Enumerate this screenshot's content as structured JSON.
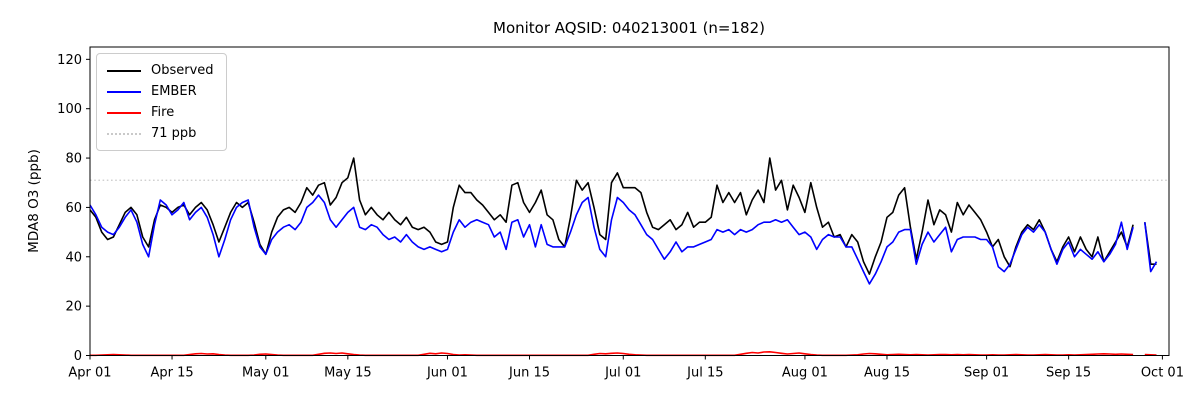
{
  "chart_data": {
    "type": "line",
    "title": "Monitor AQSID: 040213001 (n=182)",
    "ylabel": "MDA8 O3 (ppb)",
    "xlabel": "",
    "ylim": [
      0,
      125
    ],
    "yticks": [
      0,
      20,
      40,
      60,
      80,
      100,
      120
    ],
    "grid": false,
    "legend_position": "upper left",
    "x_unit": "days since Apr 01",
    "xticks": [
      {
        "label": "Apr 01",
        "day": 0
      },
      {
        "label": "Apr 15",
        "day": 14
      },
      {
        "label": "May 01",
        "day": 30
      },
      {
        "label": "May 15",
        "day": 44
      },
      {
        "label": "Jun 01",
        "day": 61
      },
      {
        "label": "Jun 15",
        "day": 75
      },
      {
        "label": "Jul 01",
        "day": 91
      },
      {
        "label": "Jul 15",
        "day": 105
      },
      {
        "label": "Aug 01",
        "day": 122
      },
      {
        "label": "Aug 15",
        "day": 136
      },
      {
        "label": "Sep 01",
        "day": 153
      },
      {
        "label": "Sep 15",
        "day": 167
      },
      {
        "label": "Oct 01",
        "day": 183
      }
    ],
    "threshold": {
      "label": "71 ppb",
      "value": 71,
      "color": "#c9c9c9",
      "style": "dotted"
    },
    "series": [
      {
        "name": "Observed",
        "color": "#000000",
        "values": [
          59,
          56,
          50,
          47,
          48,
          53,
          58,
          60,
          57,
          48,
          44,
          55,
          61,
          60,
          58,
          60,
          61,
          57,
          60,
          62,
          59,
          53,
          46,
          52,
          58,
          62,
          60,
          62,
          54,
          45,
          41,
          50,
          56,
          59,
          60,
          58,
          62,
          68,
          65,
          69,
          70,
          61,
          64,
          70,
          72,
          80,
          63,
          57,
          60,
          57,
          55,
          58,
          55,
          53,
          56,
          52,
          51,
          52,
          50,
          46,
          45,
          46,
          60,
          69,
          66,
          66,
          63,
          61,
          58,
          55,
          57,
          54,
          69,
          70,
          62,
          58,
          62,
          67,
          57,
          55,
          47,
          44,
          56,
          71,
          67,
          70,
          60,
          49,
          47,
          70,
          74,
          68,
          68,
          68,
          66,
          58,
          52,
          51,
          53,
          55,
          51,
          53,
          58,
          52,
          54,
          54,
          56,
          69,
          62,
          66,
          62,
          66,
          57,
          63,
          67,
          62,
          80,
          67,
          71,
          59,
          69,
          64,
          58,
          70,
          60,
          52,
          54,
          48,
          49,
          44,
          49,
          46,
          38,
          33,
          40,
          46,
          56,
          58,
          65,
          68,
          52,
          39,
          50,
          63,
          53,
          59,
          57,
          50,
          62,
          57,
          61,
          58,
          55,
          50,
          44,
          47,
          40,
          36,
          44,
          50,
          53,
          51,
          55,
          50,
          43,
          38,
          44,
          48,
          42,
          48,
          43,
          40,
          48,
          38,
          42,
          46,
          50,
          44,
          53,
          null,
          54,
          37,
          37
        ]
      },
      {
        "name": "EMBER",
        "color": "#0000ff",
        "values": [
          61,
          57,
          52,
          50,
          49,
          52,
          56,
          59,
          54,
          45,
          40,
          53,
          63,
          61,
          57,
          59,
          62,
          55,
          58,
          60,
          56,
          49,
          40,
          47,
          55,
          60,
          62,
          63,
          52,
          44,
          41,
          47,
          50,
          52,
          53,
          51,
          54,
          60,
          62,
          65,
          62,
          55,
          52,
          55,
          58,
          60,
          52,
          51,
          53,
          52,
          49,
          47,
          48,
          46,
          49,
          46,
          44,
          43,
          44,
          43,
          42,
          43,
          50,
          55,
          52,
          54,
          55,
          54,
          53,
          48,
          50,
          43,
          54,
          55,
          48,
          53,
          44,
          53,
          45,
          44,
          44,
          44,
          50,
          57,
          62,
          64,
          52,
          43,
          40,
          55,
          64,
          62,
          59,
          57,
          53,
          49,
          47,
          43,
          39,
          42,
          46,
          42,
          44,
          44,
          45,
          46,
          47,
          51,
          50,
          51,
          49,
          51,
          50,
          51,
          53,
          54,
          54,
          55,
          54,
          55,
          52,
          49,
          50,
          48,
          43,
          47,
          49,
          48,
          48,
          44,
          44,
          39,
          34,
          29,
          33,
          38,
          44,
          46,
          50,
          51,
          51,
          37,
          45,
          50,
          46,
          49,
          52,
          42,
          47,
          48,
          48,
          48,
          47,
          47,
          44,
          36,
          34,
          37,
          43,
          49,
          52,
          50,
          53,
          50,
          43,
          37,
          43,
          46,
          40,
          43,
          41,
          39,
          42,
          38,
          41,
          45,
          54,
          43,
          52,
          null,
          54,
          34,
          38
        ]
      },
      {
        "name": "Fire",
        "color": "#ff0000",
        "values": [
          0.1,
          0.1,
          0.2,
          0.3,
          0.4,
          0.3,
          0.2,
          0.1,
          0.1,
          0.1,
          0.1,
          0.1,
          0.1,
          0.1,
          0.1,
          0.1,
          0.1,
          0.4,
          0.7,
          0.8,
          0.6,
          0.7,
          0.4,
          0.2,
          0.1,
          0.1,
          0.1,
          0.1,
          0.2,
          0.5,
          0.6,
          0.4,
          0.2,
          0.1,
          0.1,
          0.1,
          0.1,
          0.1,
          0.1,
          0.5,
          0.9,
          1.0,
          0.8,
          1.0,
          0.7,
          0.4,
          0.2,
          0.1,
          0.1,
          0.1,
          0.1,
          0.1,
          0.1,
          0.1,
          0.1,
          0.1,
          0.1,
          0.5,
          0.9,
          0.7,
          1.0,
          0.8,
          0.4,
          0.2,
          0.3,
          0.2,
          0.1,
          0.1,
          0.1,
          0.1,
          0.1,
          0.1,
          0.1,
          0.1,
          0.1,
          0.1,
          0.1,
          0.1,
          0.1,
          0.1,
          0.1,
          0.1,
          0.1,
          0.1,
          0.1,
          0.1,
          0.5,
          0.8,
          0.7,
          0.9,
          1.0,
          0.8,
          0.5,
          0.3,
          0.2,
          0.1,
          0.1,
          0.1,
          0.1,
          0.1,
          0.1,
          0.1,
          0.1,
          0.1,
          0.1,
          0.1,
          0.1,
          0.1,
          0.1,
          0.1,
          0.1,
          0.5,
          0.9,
          1.2,
          1.0,
          1.4,
          1.5,
          1.2,
          0.9,
          0.6,
          0.8,
          1.0,
          0.7,
          0.4,
          0.2,
          0.1,
          0.1,
          0.1,
          0.1,
          0.1,
          0.2,
          0.3,
          0.6,
          0.8,
          0.7,
          0.5,
          0.3,
          0.4,
          0.5,
          0.4,
          0.3,
          0.4,
          0.3,
          0.2,
          0.3,
          0.4,
          0.4,
          0.3,
          0.4,
          0.3,
          0.4,
          0.3,
          0.2,
          0.2,
          0.3,
          0.2,
          0.2,
          0.3,
          0.4,
          0.3,
          0.2,
          0.2,
          0.3,
          0.4,
          0.3,
          0.2,
          0.2,
          0.3,
          0.2,
          0.3,
          0.4,
          0.5,
          0.6,
          0.7,
          0.6,
          0.5,
          0.6,
          0.5,
          0.4,
          null,
          0.4,
          0.3,
          0.2
        ]
      }
    ]
  }
}
